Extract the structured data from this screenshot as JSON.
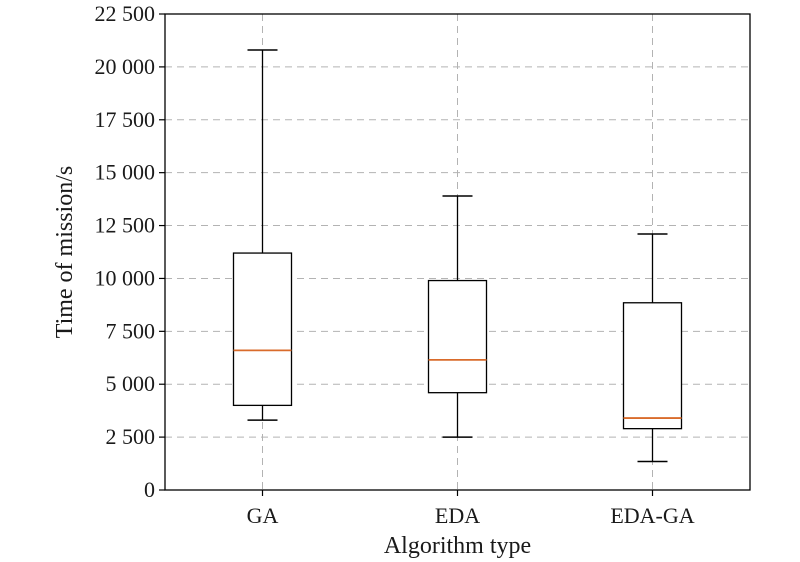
{
  "chart_data": {
    "type": "boxplot",
    "title": "",
    "xlabel": "Algorithm type",
    "ylabel": "Time of mission/s",
    "ylim": [
      0,
      22500
    ],
    "yticks": [
      0,
      2500,
      5000,
      7500,
      10000,
      12500,
      15000,
      17500,
      20000,
      22500
    ],
    "ytick_labels": [
      "0",
      "2 500",
      "5 000",
      "7 500",
      "10 000",
      "12 500",
      "15 000",
      "17 500",
      "20 000",
      "22 500"
    ],
    "grid": true,
    "categories": [
      "GA",
      "EDA",
      "EDA-GA"
    ],
    "boxes": [
      {
        "category": "GA",
        "whisker_low": 3300,
        "q1": 4000,
        "median": 6600,
        "q3": 11200,
        "whisker_high": 20800
      },
      {
        "category": "EDA",
        "whisker_low": 2500,
        "q1": 4600,
        "median": 6150,
        "q3": 9900,
        "whisker_high": 13900
      },
      {
        "category": "EDA-GA",
        "whisker_low": 1350,
        "q1": 2900,
        "median": 3400,
        "q3": 8850,
        "whisker_high": 12100
      }
    ],
    "colors": {
      "box": "#000000",
      "median": "#d96b2b",
      "grid": "#b3b3b3"
    }
  }
}
